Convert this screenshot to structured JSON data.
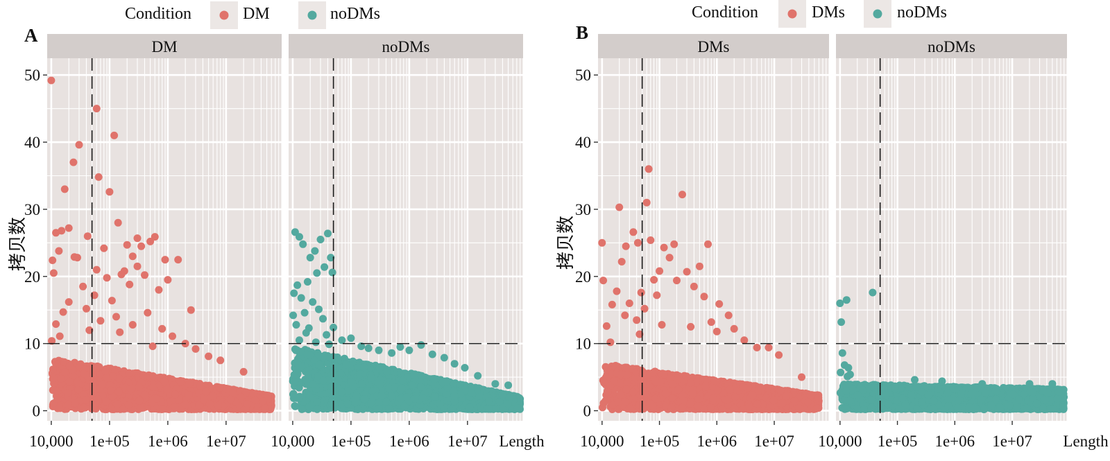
{
  "colors": {
    "DM": "#e0736b",
    "noDM": "#53a99f"
  },
  "chart_data": [
    {
      "type": "scatter",
      "panel_letter": "A",
      "legend": {
        "title": "Condition",
        "entries": [
          "DM",
          "noDMs"
        ],
        "position": "top"
      },
      "facets": [
        "DM",
        "noDMs"
      ],
      "ylabel": "拷贝数",
      "xlabel": "Length",
      "x_scale": "log10",
      "xlim": [
        8500,
        90000000
      ],
      "ylim": [
        -1.5,
        52.5
      ],
      "x_ticks": [
        10000,
        100000,
        1000000,
        10000000
      ],
      "x_tick_labels": [
        "10,000",
        "1e+05",
        "1e+06",
        "1e+07"
      ],
      "y_ticks": [
        0,
        10,
        20,
        30,
        40,
        50
      ],
      "y_tick_labels": [
        "0",
        "10",
        "20",
        "30",
        "40",
        "50"
      ],
      "reference_lines": {
        "x": 50000,
        "y": 10
      },
      "grid": true,
      "series": [
        {
          "name": "DM",
          "dense_band": {
            "x_range": [
              10000,
              60000000
            ],
            "y_max_start": 7.8,
            "y_max_end": 2.2
          },
          "points": [
            [
              10000,
              49.2
            ],
            [
              12000,
              26.5
            ],
            [
              13500,
              23.8
            ],
            [
              10500,
              22.4
            ],
            [
              11000,
              20.5
            ],
            [
              15000,
              26.8
            ],
            [
              17000,
              33.0
            ],
            [
              20000,
              27.2
            ],
            [
              24000,
              37.0
            ],
            [
              30000,
              39.6
            ],
            [
              28000,
              22.8
            ],
            [
              25000,
              22.9
            ],
            [
              42000,
              26.0
            ],
            [
              60000,
              45.0
            ],
            [
              65000,
              34.8
            ],
            [
              80000,
              24.2
            ],
            [
              100000,
              32.6
            ],
            [
              120000,
              41.0
            ],
            [
              140000,
              28.0
            ],
            [
              200000,
              24.7
            ],
            [
              250000,
              23.0
            ],
            [
              300000,
              25.7
            ],
            [
              350000,
              24.5
            ],
            [
              500000,
              25.2
            ],
            [
              600000,
              25.9
            ],
            [
              900000,
              22.5
            ],
            [
              1500000,
              22.5
            ],
            [
              2500000,
              15.0
            ],
            [
              1000000,
              19.5
            ],
            [
              700000,
              18.0
            ],
            [
              400000,
              20.2
            ],
            [
              180000,
              20.8
            ],
            [
              160000,
              20.3
            ],
            [
              90000,
              19.8
            ],
            [
              55000,
              17.2
            ],
            [
              35000,
              18.5
            ],
            [
              20000,
              16.2
            ],
            [
              16000,
              14.7
            ],
            [
              12000,
              12.9
            ],
            [
              14000,
              11.1
            ],
            [
              10200,
              10.4
            ],
            [
              40000,
              15.2
            ],
            [
              70000,
              13.4
            ],
            [
              110000,
              16.4
            ],
            [
              130000,
              14.0
            ],
            [
              250000,
              12.8
            ],
            [
              450000,
              14.6
            ],
            [
              800000,
              12.2
            ],
            [
              1200000,
              11.1
            ],
            [
              2000000,
              10.0
            ],
            [
              3000000,
              9.2
            ],
            [
              5000000,
              8.1
            ],
            [
              8000000,
              7.5
            ],
            [
              20000000,
              5.8
            ],
            [
              300000,
              21.5
            ],
            [
              220000,
              18.8
            ],
            [
              60000,
              21.0
            ],
            [
              45000,
              12.0
            ],
            [
              150000,
              11.7
            ],
            [
              550000,
              9.6
            ]
          ]
        },
        {
          "name": "noDMs",
          "dense_band": {
            "x_range": [
              10000,
              80000000
            ],
            "y_max_start": 9.5,
            "y_max_end": 2.0
          },
          "points": [
            [
              11000,
              26.6
            ],
            [
              13000,
              25.9
            ],
            [
              15000,
              24.8
            ],
            [
              20000,
              22.8
            ],
            [
              24000,
              23.8
            ],
            [
              30000,
              25.5
            ],
            [
              40000,
              26.4
            ],
            [
              45000,
              22.8
            ],
            [
              48000,
              20.6
            ],
            [
              35000,
              21.4
            ],
            [
              26000,
              20.5
            ],
            [
              18000,
              19.2
            ],
            [
              12000,
              18.7
            ],
            [
              10500,
              17.5
            ],
            [
              14000,
              16.8
            ],
            [
              22000,
              16.2
            ],
            [
              28000,
              15.1
            ],
            [
              16000,
              14.6
            ],
            [
              10200,
              14.2
            ],
            [
              11500,
              12.8
            ],
            [
              19000,
              12.3
            ],
            [
              33000,
              13.7
            ],
            [
              50000,
              12.4
            ],
            [
              38000,
              11.3
            ],
            [
              70000,
              10.5
            ],
            [
              100000,
              10.8
            ],
            [
              150000,
              9.6
            ],
            [
              200000,
              9.3
            ],
            [
              300000,
              9.0
            ],
            [
              500000,
              8.6
            ],
            [
              700000,
              9.5
            ],
            [
              1000000,
              9.0
            ],
            [
              1600000,
              9.8
            ],
            [
              2500000,
              8.4
            ],
            [
              4000000,
              7.9
            ],
            [
              6000000,
              7.0
            ],
            [
              9000000,
              6.4
            ],
            [
              15000000,
              5.2
            ],
            [
              30000000,
              4.0
            ],
            [
              50000000,
              3.8
            ],
            [
              25000,
              10.2
            ],
            [
              42000,
              9.9
            ],
            [
              13000,
              10.5
            ],
            [
              17000,
              11.6
            ]
          ]
        }
      ]
    },
    {
      "type": "scatter",
      "panel_letter": "B",
      "legend": {
        "title": "Condition",
        "entries": [
          "DMs",
          "noDMs"
        ],
        "position": "top"
      },
      "facets": [
        "DMs",
        "noDMs"
      ],
      "ylabel": "拷贝数",
      "xlabel": "Length",
      "x_scale": "log10",
      "xlim": [
        8500,
        90000000
      ],
      "ylim": [
        -1.5,
        52.5
      ],
      "x_ticks": [
        10000,
        100000,
        1000000,
        10000000
      ],
      "x_tick_labels": [
        "10,000",
        "1e+05",
        "1e+06",
        "1e+07"
      ],
      "y_ticks": [
        0,
        10,
        20,
        30,
        40,
        50
      ],
      "y_tick_labels": [
        "0",
        "10",
        "20",
        "30",
        "40",
        "50"
      ],
      "reference_lines": {
        "x": 50000,
        "y": 10
      },
      "grid": true,
      "series": [
        {
          "name": "DMs",
          "dense_band": {
            "x_range": [
              10000,
              60000000
            ],
            "y_max_start": 7.0,
            "y_max_end": 2.3
          },
          "points": [
            [
              10000,
              25.0
            ],
            [
              10500,
              19.4
            ],
            [
              20000,
              30.3
            ],
            [
              22000,
              22.2
            ],
            [
              26000,
              24.5
            ],
            [
              35000,
              26.6
            ],
            [
              42000,
              25.0
            ],
            [
              48000,
              17.6
            ],
            [
              60000,
              31.0
            ],
            [
              65000,
              36.0
            ],
            [
              70000,
              25.4
            ],
            [
              120000,
              24.3
            ],
            [
              150000,
              22.8
            ],
            [
              180000,
              24.8
            ],
            [
              250000,
              32.2
            ],
            [
              300000,
              20.7
            ],
            [
              500000,
              21.5
            ],
            [
              700000,
              24.8
            ],
            [
              1100000,
              15.9
            ],
            [
              1600000,
              14.2
            ],
            [
              3000000,
              10.5
            ],
            [
              5000000,
              9.4
            ],
            [
              8000000,
              9.4
            ],
            [
              12000000,
              8.3
            ],
            [
              30000000,
              5.0
            ],
            [
              15000,
              15.8
            ],
            [
              18000,
              17.8
            ],
            [
              25000,
              14.2
            ],
            [
              30000,
              16.0
            ],
            [
              40000,
              13.5
            ],
            [
              55000,
              15.2
            ],
            [
              80000,
              19.5
            ],
            [
              90000,
              17.2
            ],
            [
              100000,
              20.8
            ],
            [
              200000,
              19.4
            ],
            [
              400000,
              18.5
            ],
            [
              600000,
              17.0
            ],
            [
              800000,
              13.2
            ],
            [
              2000000,
              12.2
            ],
            [
              12000,
              12.6
            ],
            [
              14000,
              10.2
            ],
            [
              45000,
              11.4
            ],
            [
              110000,
              12.8
            ],
            [
              350000,
              12.5
            ],
            [
              1000000,
              11.8
            ]
          ]
        },
        {
          "name": "noDMs",
          "dense_band": {
            "x_range": [
              10000,
              80000000
            ],
            "y_max_start": 4.0,
            "y_max_end": 3.2
          },
          "points": [
            [
              10000,
              16.0
            ],
            [
              10500,
              13.2
            ],
            [
              13000,
              16.5
            ],
            [
              37000,
              17.6
            ],
            [
              11000,
              8.6
            ],
            [
              12000,
              6.8
            ],
            [
              14000,
              6.4
            ],
            [
              10200,
              5.7
            ],
            [
              15000,
              5.4
            ],
            [
              13500,
              5.1
            ],
            [
              200000,
              4.6
            ],
            [
              600000,
              4.4
            ],
            [
              3000000,
              4.0
            ],
            [
              20000000,
              4.0
            ],
            [
              50000000,
              4.0
            ]
          ]
        }
      ]
    }
  ]
}
